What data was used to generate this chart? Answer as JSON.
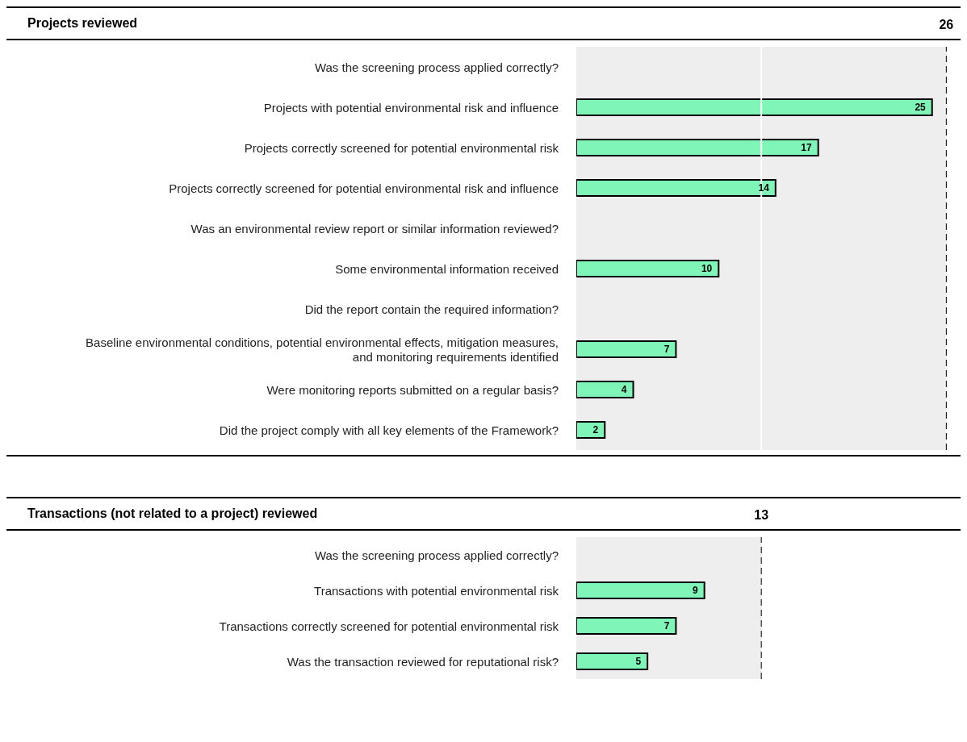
{
  "chart_data": [
    {
      "type": "bar",
      "orientation": "horizontal",
      "title": "Projects reviewed",
      "categories": [
        "Was the screening process applied correctly?",
        "Projects with potential environmental risk and influence",
        "Projects correctly screened for potential environmental risk",
        "Projects correctly screened for potential environmental risk and influence",
        "Was an environmental review report or similar information reviewed?",
        "Some environmental information received",
        "Did the report contain the required information?",
        "Baseline environmental conditions, potential environmental effects, mitigation measures, and monitoring requirements identified",
        "Were monitoring reports submitted on a regular basis?",
        "Did the project comply with all key elements of the Framework?"
      ],
      "values": [
        null,
        25,
        17,
        14,
        null,
        10,
        null,
        7,
        4,
        2
      ],
      "color": "#7ff5b8",
      "xlim": [
        0,
        27
      ],
      "data_labels": true,
      "tick_labels": "y",
      "bands": [
        {
          "axis": "x",
          "from": 0,
          "to": 26,
          "color": "#eeeeee"
        }
      ],
      "ref_lines": [
        {
          "axis": "x",
          "value": 26,
          "label": "26",
          "color": "#000000",
          "line_style": "dashed"
        },
        {
          "axis": "x",
          "value": 13,
          "color": "#ffffff",
          "line_style": "solid"
        }
      ]
    },
    {
      "type": "bar",
      "orientation": "horizontal",
      "title": "Transactions (not related to a project) reviewed",
      "categories": [
        "Was the screening process applied correctly?",
        "Transactions with potential environmental risk",
        "Transactions correctly screened for potential environmental risk",
        "Was the transaction reviewed for reputational risk?"
      ],
      "values": [
        null,
        9,
        7,
        5
      ],
      "color": "#7ff5b8",
      "xlim": [
        0,
        27
      ],
      "data_labels": true,
      "tick_labels": "y",
      "bands": [
        {
          "axis": "x",
          "from": 0,
          "to": 13,
          "color": "#eeeeee"
        }
      ],
      "ref_lines": [
        {
          "axis": "x",
          "value": 13,
          "label": "13",
          "color": "#000000",
          "line_style": "dashed"
        }
      ]
    }
  ]
}
